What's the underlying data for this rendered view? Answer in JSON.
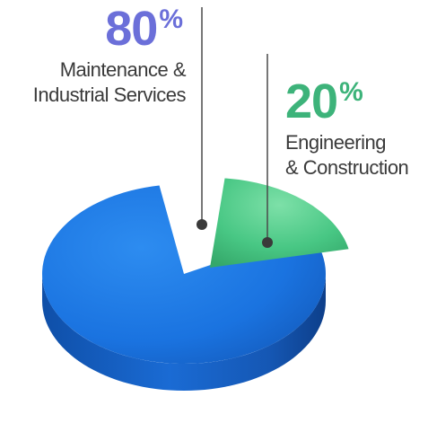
{
  "chart_data": {
    "type": "pie",
    "title": "",
    "slices": [
      {
        "label_lines": [
          "Maintenance &",
          "Industrial Services"
        ],
        "value": 80,
        "percent_text": "80",
        "color": "#1f7ee6",
        "text_color": "#6b6fd9"
      },
      {
        "label_lines": [
          "Engineering",
          "& Construction"
        ],
        "value": 20,
        "percent_text": "20",
        "color": "#3fbf7f",
        "text_color": "#3db37a"
      }
    ],
    "percent_sign": "%",
    "leader_line_color": "#4a4a4a"
  }
}
